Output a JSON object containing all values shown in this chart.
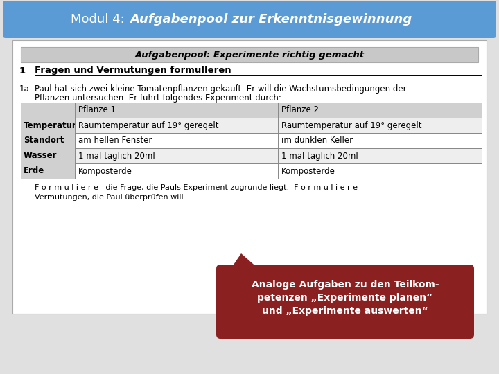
{
  "title_normal": "Modul 4: ",
  "title_italic": "Aufgabenpool zur Erkenntnisgewinnung",
  "header_bg": "#5b9bd5",
  "header_text_color": "#ffffff",
  "box_title": "Aufgabenpool: Experimente richtig gemacht",
  "box_title_bg": "#c8c8c8",
  "section1_label": "1",
  "section1_text": "Fragen und Vermutungen formulleren",
  "section1a_label": "1a",
  "section1a_line1": "Paul hat sich zwei kleine Tomatenpflanzen gekauft. Er will die Wachstumsbedingungen der",
  "section1a_line2": "Pflanzen untersuchen. Er führt folgendes Experiment durch:",
  "table_headers": [
    "",
    "Pflanze 1",
    "Pflanze 2"
  ],
  "table_rows": [
    [
      "Temperatur",
      "Raumtemperatur auf 19° geregelt",
      "Raumtemperatur auf 19° geregelt"
    ],
    [
      "Standort",
      "am hellen Fenster",
      "im dunklen Keller"
    ],
    [
      "Wasser",
      "1 mal täglich 20ml",
      "1 mal täglich 20ml"
    ],
    [
      "Erde",
      "Komposterde",
      "Komposterde"
    ]
  ],
  "table_header_bg": "#d0d0d0",
  "table_col1_bg": "#d0d0d0",
  "formuliere_line1": "F o r m u l i e r e   die Frage, die Pauls Experiment zugrunde liegt.  F o r m u l i e r e",
  "formuliere_line2": "Vermutungen, die Paul überprüfen will.",
  "callout_line1": "Analoge Aufgaben zu den Teilkom-",
  "callout_line2": "petenzen „Experimente planen“",
  "callout_line3": "und „Experimente auswerten“",
  "callout_bg": "#8b2020",
  "callout_text_color": "#ffffff",
  "outer_bg": "#e0e0e0",
  "content_bg": "#ffffff",
  "content_border": "#aaaaaa"
}
